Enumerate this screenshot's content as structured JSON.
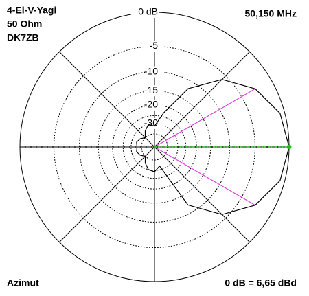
{
  "chart_data": {
    "type": "polar",
    "title_lines": [
      "4-El-V-Yagi",
      "50 Ohm",
      "DK7ZB"
    ],
    "frequency": "50,150 MHz",
    "axis_label": "Azimut",
    "reference": "0 dB = 6,65 dBd",
    "rlim": [
      -40,
      0
    ],
    "rticks": [
      {
        "value": 0,
        "label": "0 dB"
      },
      -5,
      -10,
      -15,
      -20,
      -30
    ],
    "rminor": [
      -25,
      -40
    ],
    "spokes": [
      0,
      45,
      90,
      135,
      180,
      225,
      270,
      315
    ],
    "series": [
      {
        "name": "Azimut",
        "color": "#000000",
        "theta": [
          0,
          15,
          30,
          45,
          60,
          75,
          90,
          105,
          120,
          135,
          150,
          165,
          180,
          195,
          210,
          225,
          240,
          255,
          270,
          285,
          300,
          315,
          330,
          345
        ],
        "r": [
          0,
          -0.6,
          -2.5,
          -5.9,
          -11.9,
          -23,
          -32,
          -30,
          -34,
          -40,
          -36,
          -34,
          -35,
          -34,
          -36,
          -40,
          -34,
          -30,
          -29,
          -33,
          -12,
          -5.9,
          -2.5,
          -0.6
        ]
      }
    ],
    "beamwidth_angles": [
      30,
      330
    ],
    "beamwidth_color": "#e040e0",
    "main_direction": 0,
    "main_color": "#22bb22"
  }
}
